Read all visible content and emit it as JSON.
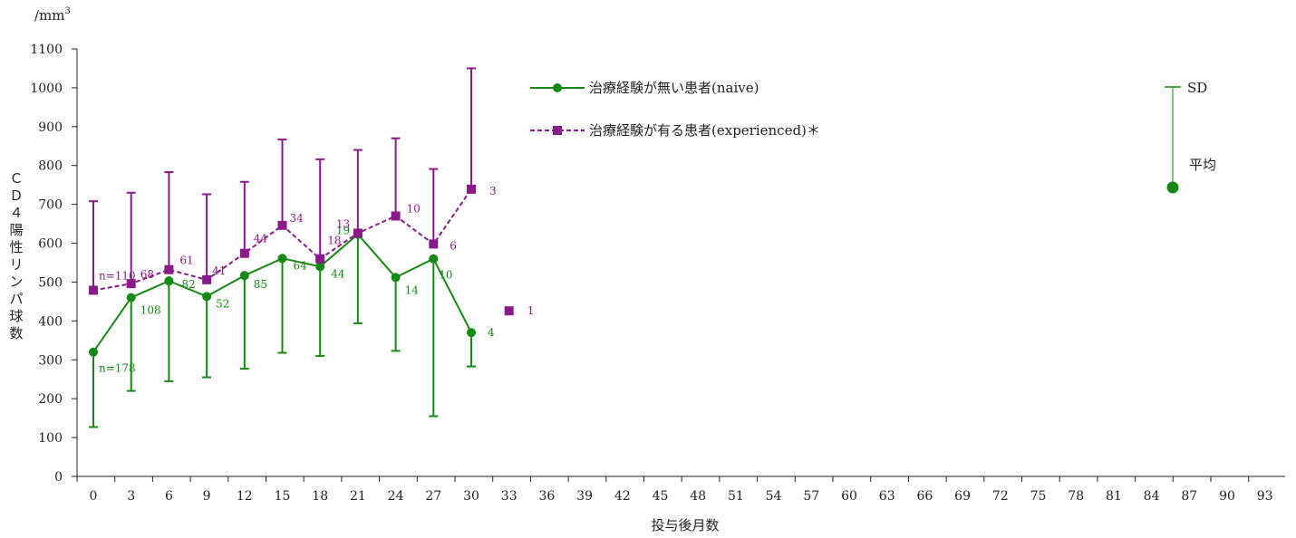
{
  "chart_data": {
    "type": "line",
    "title": "",
    "unit_label": "/mm",
    "unit_sup": "3",
    "xlabel": "投与後月数",
    "ylabel": "ＣＤ４陽性リンパ球数",
    "ylabel_chars": [
      "Ｃ",
      "Ｄ",
      "４",
      "陽",
      "性",
      "リ",
      "ン",
      "パ",
      "球",
      "数"
    ],
    "xlim": [
      0,
      93
    ],
    "ylim": [
      0,
      1100
    ],
    "x_ticks": [
      0,
      3,
      6,
      9,
      12,
      15,
      18,
      21,
      24,
      27,
      30,
      33,
      36,
      39,
      42,
      45,
      48,
      51,
      54,
      57,
      60,
      63,
      66,
      69,
      72,
      75,
      78,
      81,
      84,
      87,
      90,
      93
    ],
    "y_ticks": [
      0,
      100,
      200,
      300,
      400,
      500,
      600,
      700,
      800,
      900,
      1000,
      1100
    ],
    "grid": false,
    "legend_position": "top-center",
    "series": [
      {
        "name": "治療経験が無い患者(naive)",
        "color": "#138a13",
        "line_style": "solid",
        "marker": "circle",
        "points": [
          {
            "x": 0,
            "mean": 320,
            "sd_low": 127,
            "sd_high": null,
            "n": "n=178"
          },
          {
            "x": 3,
            "mean": 460,
            "sd_low": 220,
            "sd_high": null,
            "n": "108"
          },
          {
            "x": 6,
            "mean": 503,
            "sd_low": 245,
            "sd_high": null,
            "n": "82"
          },
          {
            "x": 9,
            "mean": 463,
            "sd_low": 255,
            "sd_high": null,
            "n": "52"
          },
          {
            "x": 12,
            "mean": 517,
            "sd_low": 277,
            "sd_high": null,
            "n": "85"
          },
          {
            "x": 15,
            "mean": 561,
            "sd_low": 318,
            "sd_high": null,
            "n": "64"
          },
          {
            "x": 18,
            "mean": 540,
            "sd_low": 310,
            "sd_high": null,
            "n": "44"
          },
          {
            "x": 21,
            "mean": 623,
            "sd_low": 394,
            "sd_high": null,
            "n": "19"
          },
          {
            "x": 24,
            "mean": 512,
            "sd_low": 323,
            "sd_high": null,
            "n": "14"
          },
          {
            "x": 27,
            "mean": 560,
            "sd_low": 155,
            "sd_high": null,
            "n": "10"
          },
          {
            "x": 30,
            "mean": 370,
            "sd_low": 283,
            "sd_high": null,
            "n": "4"
          }
        ]
      },
      {
        "name": "治療経験が有る患者(experienced)＊",
        "color": "#8a1a8a",
        "line_style": "dashed",
        "marker": "square",
        "points": [
          {
            "x": 0,
            "mean": 479,
            "sd_low": null,
            "sd_high": 708,
            "n": "n=110"
          },
          {
            "x": 3,
            "mean": 496,
            "sd_low": null,
            "sd_high": 730,
            "n": "68"
          },
          {
            "x": 6,
            "mean": 532,
            "sd_low": null,
            "sd_high": 783,
            "n": "61"
          },
          {
            "x": 9,
            "mean": 506,
            "sd_low": null,
            "sd_high": 726,
            "n": "41"
          },
          {
            "x": 12,
            "mean": 574,
            "sd_low": null,
            "sd_high": 758,
            "n": "44"
          },
          {
            "x": 15,
            "mean": 646,
            "sd_low": null,
            "sd_high": 867,
            "n": "34"
          },
          {
            "x": 18,
            "mean": 560,
            "sd_low": null,
            "sd_high": 816,
            "n": "18"
          },
          {
            "x": 21,
            "mean": 626,
            "sd_low": null,
            "sd_high": 840,
            "n": "13"
          },
          {
            "x": 24,
            "mean": 670,
            "sd_low": null,
            "sd_high": 870,
            "n": "10"
          },
          {
            "x": 27,
            "mean": 598,
            "sd_low": null,
            "sd_high": 791,
            "n": "6"
          },
          {
            "x": 30,
            "mean": 739,
            "sd_low": null,
            "sd_high": 1050,
            "n": "3"
          },
          {
            "x": 33,
            "mean": 426,
            "sd_low": null,
            "sd_high": null,
            "n": "1",
            "connected": false
          }
        ]
      }
    ],
    "sd_key": {
      "sd_label": "SD",
      "mean_label": "平均",
      "color": "#138a13"
    }
  }
}
